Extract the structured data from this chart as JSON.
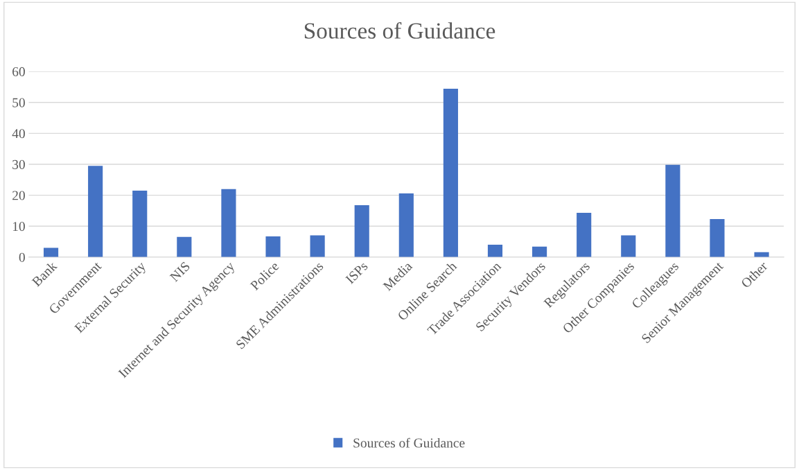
{
  "chart_data": {
    "type": "bar",
    "title": "Sources of Guidance",
    "categories": [
      "Bank",
      "Government",
      "External Security",
      "NIS",
      "Internet and Security Agency",
      "Police",
      "SME Administrations",
      "ISPs",
      "Media",
      "Online Search",
      "Trade Association",
      "Security Vendors",
      "Regulators",
      "Other Companies",
      "Colleagues",
      "Senior Management",
      "Other"
    ],
    "series": [
      {
        "name": "Sources of Guidance",
        "color": "#4472c4",
        "values": [
          3.0,
          29.5,
          21.5,
          6.5,
          22.0,
          6.7,
          7.0,
          16.8,
          20.6,
          54.4,
          4.0,
          3.4,
          14.3,
          7.0,
          29.8,
          12.3,
          1.6
        ]
      }
    ],
    "ylim": [
      0,
      60
    ],
    "yticks": [
      0,
      10,
      20,
      30,
      40,
      50,
      60
    ],
    "grid": "y",
    "legend": "bottom"
  }
}
